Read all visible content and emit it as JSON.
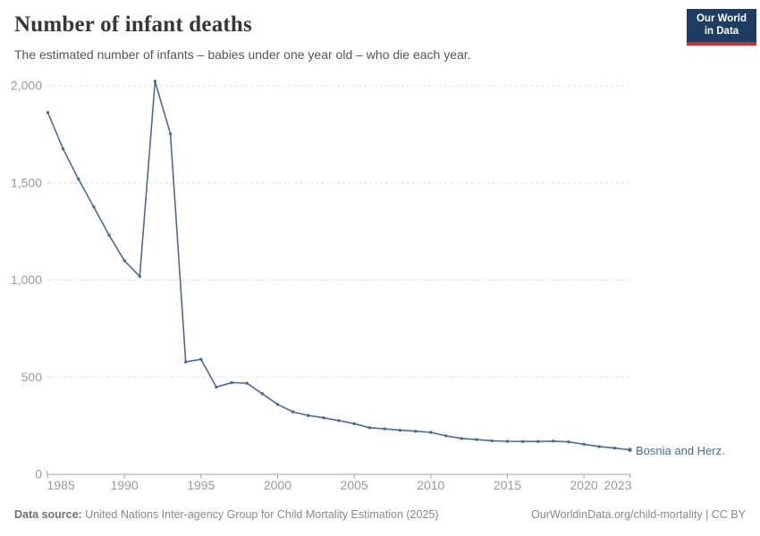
{
  "header": {
    "title": "Number of infant deaths",
    "subtitle": "The estimated number of infants – babies under one year old – who die each year.",
    "logo": {
      "line1": "Our World",
      "line2": "in Data"
    }
  },
  "chart_data": {
    "type": "line",
    "title": "Number of infant deaths",
    "xlabel": "",
    "ylabel": "",
    "xlim": [
      1985,
      2023
    ],
    "ylim": [
      0,
      2050
    ],
    "grid": "horizontal-dashed",
    "legend_position": "end-of-line-label",
    "x_ticks": [
      1985,
      1990,
      1995,
      2000,
      2005,
      2010,
      2015,
      2020,
      2023
    ],
    "y_ticks": [
      0,
      500,
      1000,
      1500,
      2000
    ],
    "y_tick_labels": [
      "0",
      "500",
      "1,000",
      "1,500",
      "2,000"
    ],
    "series": [
      {
        "name": "Bosnia and Herz.",
        "color": "#4C6A9C",
        "years": [
          1985,
          1986,
          1987,
          1988,
          1989,
          1990,
          1991,
          1992,
          1993,
          1994,
          1995,
          1996,
          1997,
          1998,
          1999,
          2000,
          2001,
          2002,
          2003,
          2004,
          2005,
          2006,
          2007,
          2008,
          2009,
          2010,
          2011,
          2012,
          2013,
          2014,
          2015,
          2016,
          2017,
          2018,
          2019,
          2020,
          2021,
          2022,
          2023
        ],
        "values": [
          1862,
          1675,
          1519,
          1376,
          1231,
          1100,
          1019,
          2023,
          1752,
          579,
          592,
          449,
          472,
          469,
          415,
          360,
          322,
          303,
          291,
          277,
          261,
          240,
          234,
          227,
          222,
          216,
          198,
          185,
          179,
          173,
          170,
          169,
          169,
          171,
          167,
          155,
          143,
          135,
          126
        ]
      }
    ]
  },
  "colors": {
    "line": "#4C6A9C",
    "grid": "#dedede",
    "axis": "#a5a5a5",
    "axis_text": "#9a9a9a",
    "logo_bg": "#1d3d63",
    "logo_accent": "#c0332e"
  },
  "footer": {
    "source_label": "Data source:",
    "source_text": " United Nations Inter-agency Group for Child Mortality Estimation (2025)",
    "rights": "OurWorldinData.org/child-mortality | CC BY"
  }
}
